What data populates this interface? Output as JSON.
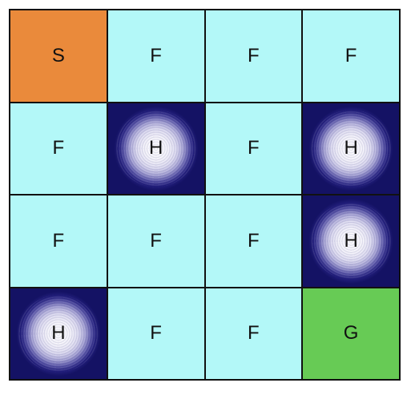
{
  "board": {
    "rows": [
      [
        "S",
        "F",
        "F",
        "F"
      ],
      [
        "F",
        "H",
        "F",
        "H"
      ],
      [
        "F",
        "F",
        "F",
        "H"
      ],
      [
        "H",
        "F",
        "F",
        "G"
      ]
    ]
  },
  "colors": {
    "start": "#ea8a3b",
    "frozen": "#b3f8f8",
    "hole": "#141264",
    "goal": "#67cb55",
    "grid": "#111111"
  }
}
